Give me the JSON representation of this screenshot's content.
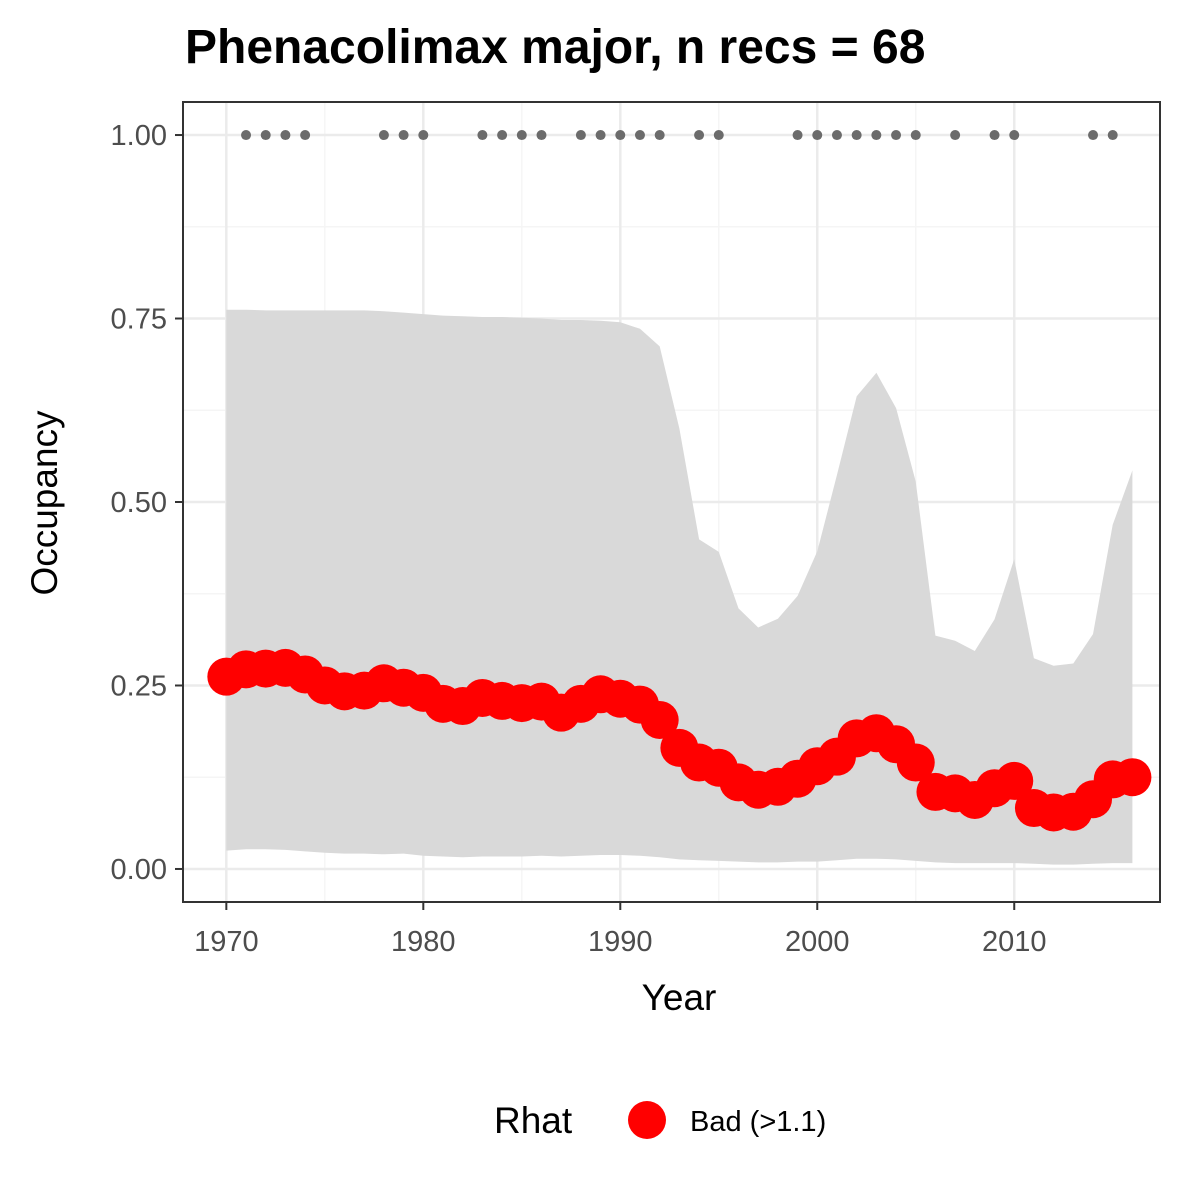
{
  "chart_data": {
    "type": "line",
    "title": "Phenacolimax major, n recs = 68",
    "xlabel": "Year",
    "ylabel": "Occupancy",
    "xlim": [
      1967.8,
      2017.4
    ],
    "ylim": [
      -0.045,
      1.045
    ],
    "x_ticks": [
      1970,
      1980,
      1990,
      2000,
      2010
    ],
    "y_ticks": [
      0.0,
      0.25,
      0.5,
      0.75,
      1.0
    ],
    "x_tick_labels": [
      "1970",
      "1980",
      "1990",
      "2000",
      "2010"
    ],
    "y_tick_labels": [
      "0.00",
      "0.25",
      "0.50",
      "0.75",
      "1.00"
    ],
    "grid": true,
    "legend": {
      "title": "Rhat",
      "position": "bottom",
      "items": [
        {
          "label": "Bad (>1.1)",
          "color": "#ff0000"
        }
      ]
    },
    "colors": {
      "points": "#ff0000",
      "ribbon": "#d9d9d9",
      "records": "#6b6b6b",
      "panel_border": "#333333",
      "grid_major": "#ebebeb",
      "grid_minor": "#f5f5f5"
    },
    "years": [
      1970,
      1971,
      1972,
      1973,
      1974,
      1975,
      1976,
      1977,
      1978,
      1979,
      1980,
      1981,
      1982,
      1983,
      1984,
      1985,
      1986,
      1987,
      1988,
      1989,
      1990,
      1991,
      1992,
      1993,
      1994,
      1995,
      1996,
      1997,
      1998,
      1999,
      2000,
      2001,
      2002,
      2003,
      2004,
      2005,
      2006,
      2007,
      2008,
      2009,
      2010,
      2011,
      2012,
      2013,
      2014,
      2015,
      2016
    ],
    "series": [
      {
        "values": [
          0.262,
          0.272,
          0.273,
          0.274,
          0.265,
          0.25,
          0.242,
          0.243,
          0.253,
          0.247,
          0.24,
          0.225,
          0.222,
          0.233,
          0.229,
          0.226,
          0.228,
          0.213,
          0.225,
          0.238,
          0.232,
          0.224,
          0.203,
          0.165,
          0.145,
          0.138,
          0.118,
          0.108,
          0.112,
          0.123,
          0.14,
          0.153,
          0.178,
          0.185,
          0.17,
          0.145,
          0.105,
          0.103,
          0.094,
          0.11,
          0.12,
          0.083,
          0.077,
          0.078,
          0.095,
          0.122,
          0.125
        ],
        "lower": [
          0.025,
          0.027,
          0.027,
          0.026,
          0.024,
          0.022,
          0.021,
          0.021,
          0.02,
          0.021,
          0.018,
          0.017,
          0.016,
          0.017,
          0.017,
          0.017,
          0.018,
          0.017,
          0.018,
          0.019,
          0.019,
          0.018,
          0.016,
          0.013,
          0.012,
          0.011,
          0.01,
          0.009,
          0.009,
          0.01,
          0.01,
          0.012,
          0.014,
          0.014,
          0.013,
          0.011,
          0.009,
          0.008,
          0.008,
          0.008,
          0.008,
          0.007,
          0.006,
          0.006,
          0.007,
          0.008,
          0.008
        ],
        "upper": [
          0.762,
          0.762,
          0.761,
          0.761,
          0.761,
          0.761,
          0.761,
          0.761,
          0.76,
          0.758,
          0.756,
          0.754,
          0.753,
          0.752,
          0.752,
          0.751,
          0.75,
          0.748,
          0.748,
          0.747,
          0.745,
          0.736,
          0.712,
          0.6,
          0.449,
          0.432,
          0.355,
          0.329,
          0.341,
          0.372,
          0.433,
          0.537,
          0.644,
          0.676,
          0.628,
          0.528,
          0.318,
          0.311,
          0.297,
          0.34,
          0.422,
          0.287,
          0.277,
          0.28,
          0.32,
          0.469,
          0.543
        ]
      }
    ],
    "records": {
      "years": [
        1971,
        1972,
        1973,
        1974,
        1978,
        1979,
        1980,
        1983,
        1984,
        1985,
        1986,
        1988,
        1989,
        1990,
        1991,
        1992,
        1994,
        1995,
        1999,
        2000,
        2001,
        2002,
        2003,
        2004,
        2005,
        2007,
        2009,
        2010,
        2014,
        2015
      ],
      "value": 1.0
    }
  }
}
